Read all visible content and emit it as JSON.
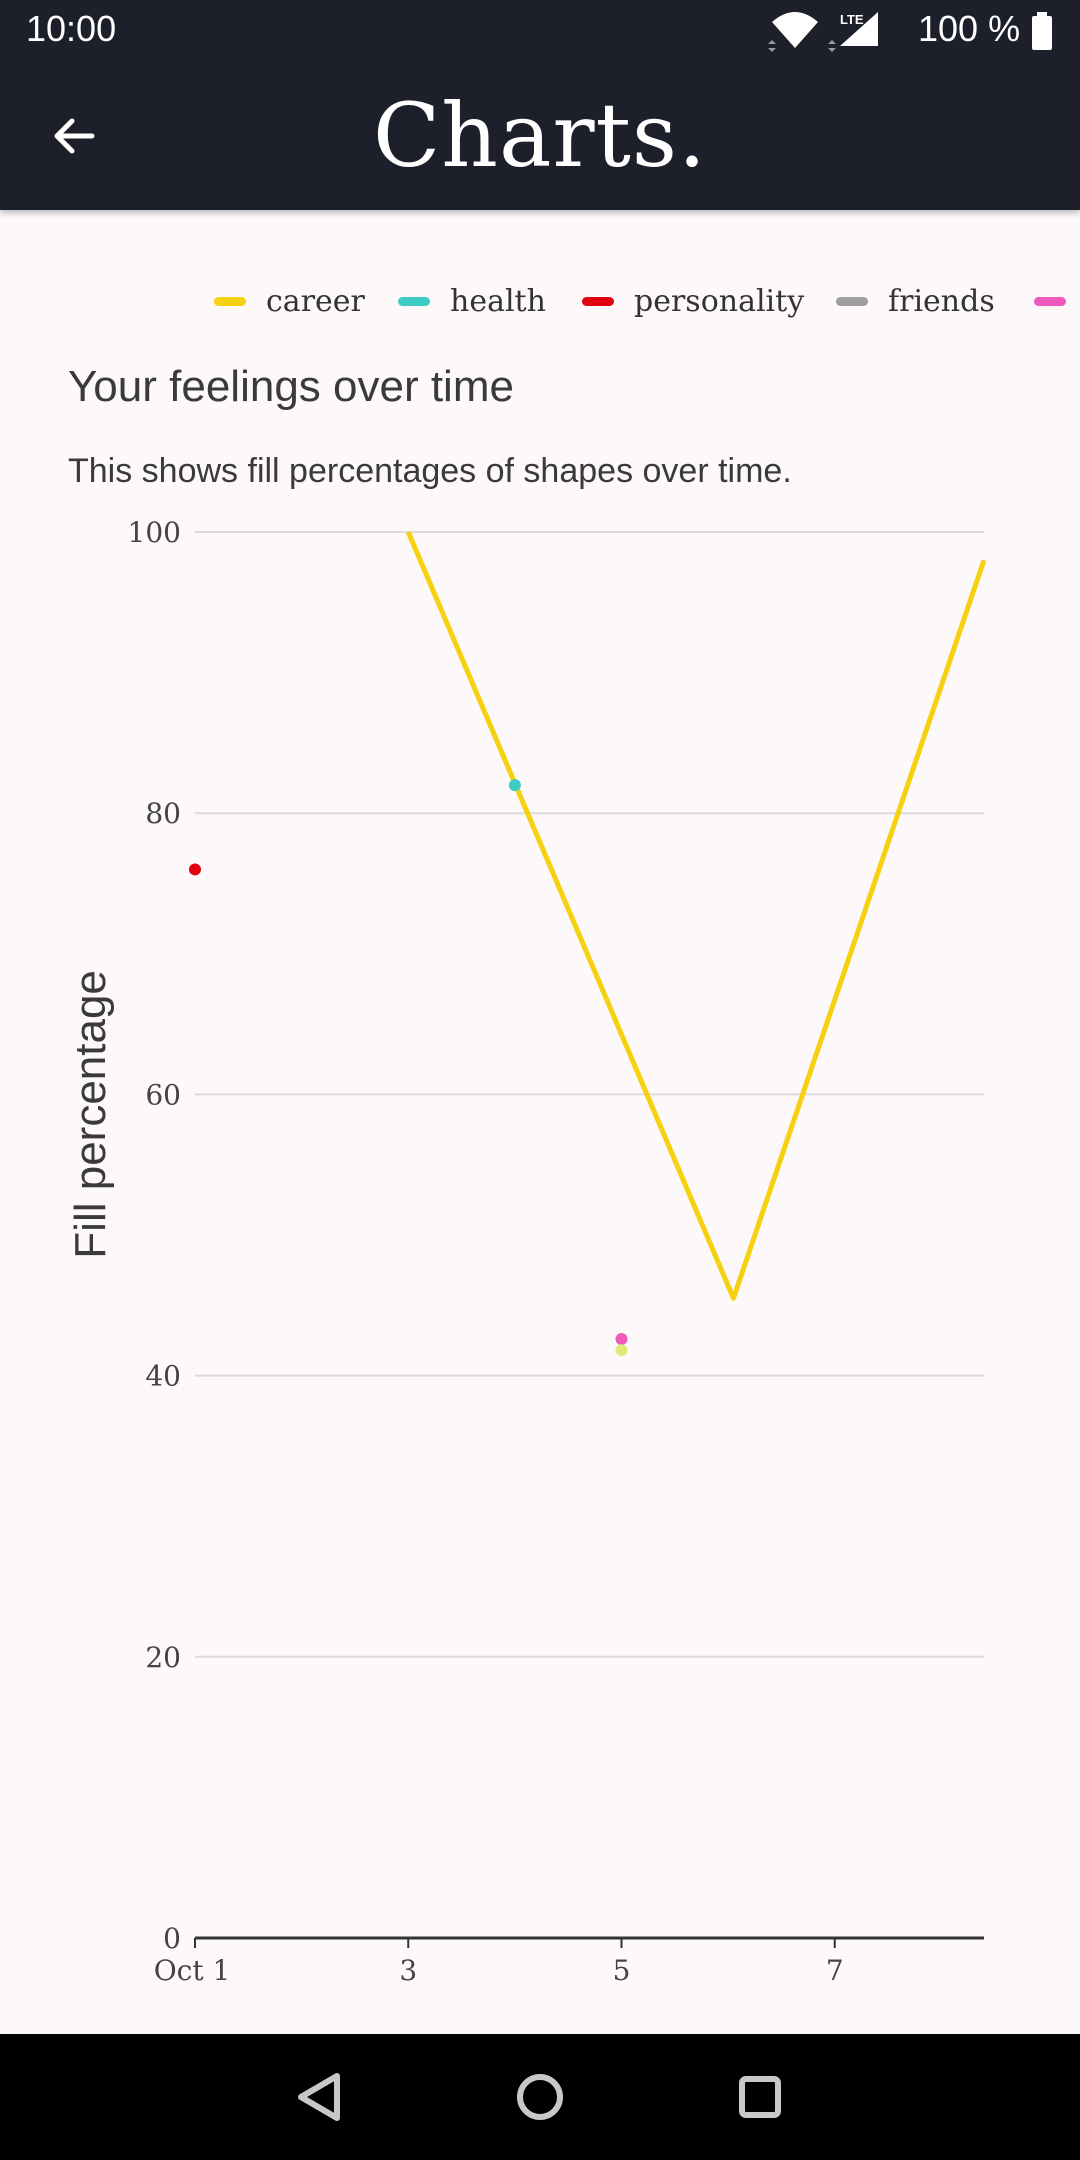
{
  "status_bar": {
    "time": "10:00",
    "battery": "100 %",
    "network": "LTE",
    "icons": [
      "wifi-icon",
      "signal-icon",
      "battery-icon"
    ]
  },
  "app_bar": {
    "title": "Charts.",
    "back_icon": "arrow-left-icon"
  },
  "legend": [
    {
      "name": "career",
      "color": "#f5d10f"
    },
    {
      "name": "health",
      "color": "#3dcbc4"
    },
    {
      "name": "personality",
      "color": "#e00010"
    },
    {
      "name": "friends",
      "color": "#9e9e9e"
    },
    {
      "name": "",
      "color": "#ef59bd"
    }
  ],
  "chart_header": {
    "title": "Your feelings over time",
    "subtitle": "This shows fill percentages of shapes over time."
  },
  "chart_data": {
    "type": "line",
    "title": "Your feelings over time",
    "xlabel": "",
    "ylabel": "Fill percentage",
    "xlim": [
      1,
      8.4
    ],
    "ylim": [
      0,
      100
    ],
    "x_ticks": [
      1,
      3,
      5,
      7
    ],
    "x_tick_labels": [
      "Oct 1",
      "3",
      "5",
      "7"
    ],
    "y_ticks": [
      0,
      20,
      40,
      60,
      80,
      100
    ],
    "y_tick_labels": [
      "0",
      "20",
      "40",
      "60",
      "80",
      "100"
    ],
    "grid": true,
    "series": [
      {
        "name": "career",
        "color": "#f5d10f",
        "mode": "line",
        "x": [
          3,
          6.05,
          8.4
        ],
        "y": [
          100,
          45.5,
          98
        ]
      },
      {
        "name": "health",
        "color": "#3dcbc4",
        "mode": "point",
        "x": [
          4
        ],
        "y": [
          82
        ]
      },
      {
        "name": "personality",
        "color": "#e00010",
        "mode": "point",
        "x": [
          1
        ],
        "y": [
          76
        ]
      },
      {
        "name": "",
        "color": "#ef59bd",
        "mode": "point",
        "x": [
          5
        ],
        "y": [
          42.6
        ]
      },
      {
        "name": "",
        "color": "#dfec7a",
        "mode": "point",
        "x": [
          5
        ],
        "y": [
          41.8
        ]
      }
    ]
  },
  "nav_bar": {
    "back_icon": "nav-back-icon",
    "home_icon": "nav-home-icon",
    "recents_icon": "nav-recents-icon"
  }
}
